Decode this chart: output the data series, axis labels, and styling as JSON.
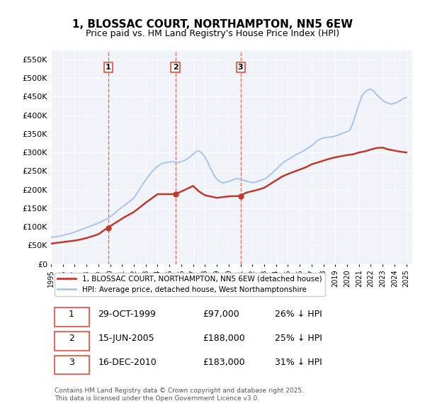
{
  "title": "1, BLOSSAC COURT, NORTHAMPTON, NN5 6EW",
  "subtitle": "Price paid vs. HM Land Registry's House Price Index (HPI)",
  "ylabel": "",
  "ylim": [
    0,
    575000
  ],
  "yticks": [
    0,
    50000,
    100000,
    150000,
    200000,
    250000,
    300000,
    350000,
    400000,
    450000,
    500000,
    550000
  ],
  "ytick_labels": [
    "£0",
    "£50K",
    "£100K",
    "£150K",
    "£200K",
    "£250K",
    "£300K",
    "£350K",
    "£400K",
    "£450K",
    "£500K",
    "£550K"
  ],
  "hpi_color": "#aec6e8",
  "price_color": "#c0392b",
  "vline_color": "#e74c3c",
  "bg_color": "#f0f4fa",
  "sale_dates": [
    "1999-10-29",
    "2005-06-15",
    "2010-12-16"
  ],
  "sale_prices": [
    97000,
    188000,
    183000
  ],
  "sale_labels": [
    "1",
    "2",
    "3"
  ],
  "legend_label_price": "1, BLOSSAC COURT, NORTHAMPTON, NN5 6EW (detached house)",
  "legend_label_hpi": "HPI: Average price, detached house, West Northamptonshire",
  "table_rows": [
    [
      "1",
      "29-OCT-1999",
      "£97,000",
      "26% ↓ HPI"
    ],
    [
      "2",
      "15-JUN-2005",
      "£188,000",
      "25% ↓ HPI"
    ],
    [
      "3",
      "16-DEC-2010",
      "£183,000",
      "31% ↓ HPI"
    ]
  ],
  "footer": "Contains HM Land Registry data © Crown copyright and database right 2025.\nThis data is licensed under the Open Government Licence v3.0.",
  "hpi_x": [
    1995.0,
    1995.25,
    1995.5,
    1995.75,
    1996.0,
    1996.25,
    1996.5,
    1996.75,
    1997.0,
    1997.25,
    1997.5,
    1997.75,
    1998.0,
    1998.25,
    1998.5,
    1998.75,
    1999.0,
    1999.25,
    1999.5,
    1999.75,
    2000.0,
    2000.25,
    2000.5,
    2000.75,
    2001.0,
    2001.25,
    2001.5,
    2001.75,
    2002.0,
    2002.25,
    2002.5,
    2002.75,
    2003.0,
    2003.25,
    2003.5,
    2003.75,
    2004.0,
    2004.25,
    2004.5,
    2004.75,
    2005.0,
    2005.25,
    2005.5,
    2005.75,
    2006.0,
    2006.25,
    2006.5,
    2006.75,
    2007.0,
    2007.25,
    2007.5,
    2007.75,
    2008.0,
    2008.25,
    2008.5,
    2008.75,
    2009.0,
    2009.25,
    2009.5,
    2009.75,
    2010.0,
    2010.25,
    2010.5,
    2010.75,
    2011.0,
    2011.25,
    2011.5,
    2011.75,
    2012.0,
    2012.25,
    2012.5,
    2012.75,
    2013.0,
    2013.25,
    2013.5,
    2013.75,
    2014.0,
    2014.25,
    2014.5,
    2014.75,
    2015.0,
    2015.25,
    2015.5,
    2015.75,
    2016.0,
    2016.25,
    2016.5,
    2016.75,
    2017.0,
    2017.25,
    2017.5,
    2017.75,
    2018.0,
    2018.25,
    2018.5,
    2018.75,
    2019.0,
    2019.25,
    2019.5,
    2019.75,
    2020.0,
    2020.25,
    2020.5,
    2020.75,
    2021.0,
    2021.25,
    2021.5,
    2021.75,
    2022.0,
    2022.25,
    2022.5,
    2022.75,
    2023.0,
    2023.25,
    2023.5,
    2023.75,
    2024.0,
    2024.25,
    2024.5,
    2024.75,
    2025.0
  ],
  "hpi_y": [
    72000,
    73000,
    74000,
    75500,
    77000,
    79000,
    81000,
    83000,
    86000,
    89000,
    92000,
    95000,
    98000,
    101000,
    104000,
    107000,
    110000,
    114000,
    118000,
    122000,
    127000,
    133000,
    140000,
    147000,
    153000,
    159000,
    165000,
    171000,
    178000,
    190000,
    202000,
    215000,
    226000,
    237000,
    247000,
    255000,
    263000,
    268000,
    272000,
    273000,
    274000,
    275000,
    274000,
    273000,
    275000,
    278000,
    283000,
    289000,
    295000,
    302000,
    304000,
    298000,
    288000,
    272000,
    255000,
    240000,
    228000,
    222000,
    218000,
    220000,
    222000,
    225000,
    228000,
    230000,
    228000,
    225000,
    223000,
    221000,
    219000,
    220000,
    223000,
    226000,
    228000,
    233000,
    240000,
    247000,
    255000,
    262000,
    270000,
    276000,
    281000,
    285000,
    290000,
    295000,
    299000,
    303000,
    308000,
    313000,
    318000,
    325000,
    332000,
    336000,
    339000,
    340000,
    341000,
    342000,
    344000,
    347000,
    350000,
    353000,
    356000,
    360000,
    380000,
    405000,
    430000,
    452000,
    462000,
    468000,
    470000,
    465000,
    455000,
    448000,
    440000,
    435000,
    432000,
    430000,
    432000,
    435000,
    440000,
    445000,
    448000
  ],
  "price_x": [
    1995.0,
    1995.5,
    1996.0,
    1996.5,
    1997.0,
    1997.5,
    1998.0,
    1998.5,
    1999.0,
    1999.75,
    2000.25,
    2000.75,
    2001.25,
    2002.0,
    2003.0,
    2004.0,
    2005.5,
    2006.0,
    2007.0,
    2007.5,
    2008.0,
    2009.0,
    2010.0,
    2010.9,
    2011.5,
    2012.0,
    2012.5,
    2013.0,
    2013.5,
    2014.0,
    2014.5,
    2015.0,
    2015.5,
    2016.0,
    2016.5,
    2017.0,
    2017.5,
    2018.0,
    2018.5,
    2019.0,
    2019.5,
    2020.0,
    2020.5,
    2021.0,
    2021.5,
    2022.0,
    2022.5,
    2023.0,
    2023.5,
    2024.0,
    2024.5,
    2025.0
  ],
  "price_y": [
    55000,
    57000,
    59000,
    61000,
    63000,
    66000,
    70000,
    75000,
    80000,
    97000,
    107000,
    117000,
    127000,
    140000,
    165000,
    188000,
    188000,
    195000,
    210000,
    195000,
    185000,
    178000,
    182000,
    183000,
    192000,
    196000,
    200000,
    205000,
    215000,
    225000,
    235000,
    242000,
    248000,
    254000,
    260000,
    268000,
    273000,
    278000,
    283000,
    287000,
    290000,
    293000,
    295000,
    300000,
    303000,
    308000,
    312000,
    313000,
    308000,
    305000,
    302000,
    300000
  ]
}
